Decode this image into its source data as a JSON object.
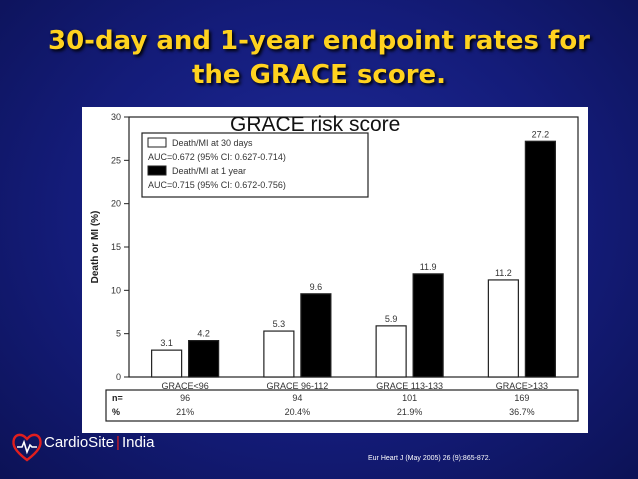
{
  "slide": {
    "title_line1": "30-day and 1-year endpoint rates for",
    "title_line2": "the GRACE score.",
    "citation": "Eur Heart J (May 2005) 26 (9):865-872."
  },
  "logo": {
    "name_part1": "CardioSite",
    "separator": "|",
    "name_part2": "India",
    "icon": "heart-logo-icon"
  },
  "chart_data": {
    "type": "bar",
    "title": "GRACE risk score",
    "ylabel": "Death or MI (%)",
    "ylim": [
      0,
      30
    ],
    "yticks": [
      0,
      5,
      10,
      15,
      20,
      25,
      30
    ],
    "categories": [
      "GRACE<96",
      "GRACE 96-112",
      "GRACE 113-133",
      "GRACE>133"
    ],
    "series": [
      {
        "name": "Death/MI at 30 days",
        "values": [
          3.1,
          5.3,
          5.9,
          11.2
        ],
        "labels": [
          "3.1",
          "5.3",
          "5.9",
          "11.2"
        ],
        "color": "#ffffff"
      },
      {
        "name": "Death/MI at 1 year",
        "values": [
          4.2,
          9.6,
          11.9,
          27.2
        ],
        "labels": [
          "4.2",
          "9.6",
          "11.9",
          "27.2"
        ],
        "color": "#000000"
      }
    ],
    "legend": {
      "placement": "top-left",
      "auc_30day": "AUC=0.672 (95% CI: 0.627-0.714)",
      "auc_1year": "AUC=0.715 (95% CI: 0.672-0.756)"
    },
    "table": {
      "row_labels": [
        "n=",
        "%"
      ],
      "n": [
        "96",
        "94",
        "101",
        "169"
      ],
      "percent": [
        "21%",
        "20.4%",
        "21.9%",
        "36.7%"
      ]
    }
  }
}
